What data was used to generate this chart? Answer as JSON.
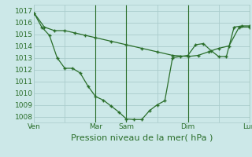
{
  "xlabel": "Pression niveau de la mer( hPa )",
  "background_color": "#cce8e8",
  "grid_color": "#aacccc",
  "line_color": "#2a6e2a",
  "ylim": [
    1007.5,
    1017.5
  ],
  "yticks": [
    1008,
    1009,
    1010,
    1011,
    1012,
    1013,
    1014,
    1015,
    1016,
    1017
  ],
  "xtick_labels": [
    "Ven",
    "",
    "Mar",
    "Sam",
    "",
    "Dim",
    "",
    "Lun"
  ],
  "xtick_positions": [
    0,
    2,
    4,
    6,
    8,
    10,
    12,
    14
  ],
  "vline_positions": [
    4,
    6,
    10,
    14
  ],
  "line1_x": [
    0,
    0.67,
    1.33,
    2.0,
    2.67,
    3.33,
    4.0,
    5.0,
    6.0,
    7.0,
    8.0,
    9.0,
    10.0,
    10.67,
    11.33,
    12.0,
    12.67,
    13.33,
    14.0
  ],
  "line1_y": [
    1016.8,
    1015.6,
    1015.3,
    1015.3,
    1015.1,
    1014.9,
    1014.7,
    1014.4,
    1014.1,
    1013.8,
    1013.5,
    1013.2,
    1013.1,
    1013.2,
    1013.5,
    1013.8,
    1014.0,
    1015.6,
    1015.6
  ],
  "line2_x": [
    0,
    0.5,
    1.0,
    1.5,
    2.0,
    2.5,
    3.0,
    3.5,
    4.0,
    4.5,
    5.0,
    5.5,
    6.0,
    6.5,
    7.0,
    7.5,
    8.0,
    8.5,
    9.0,
    9.5,
    10.0,
    10.5,
    11.0,
    11.5,
    12.0,
    12.5,
    13.0,
    13.5,
    14.0
  ],
  "line2_y": [
    1016.8,
    1015.6,
    1014.9,
    1013.0,
    1012.1,
    1012.1,
    1011.7,
    1010.6,
    1009.7,
    1009.4,
    1008.9,
    1008.4,
    1007.8,
    1007.75,
    1007.75,
    1008.5,
    1009.0,
    1009.35,
    1013.0,
    1013.1,
    1013.2,
    1014.1,
    1014.2,
    1013.6,
    1013.1,
    1013.1,
    1015.6,
    1015.7,
    1015.7
  ],
  "xlabel_fontsize": 8,
  "ytick_fontsize": 6.5,
  "xtick_fontsize": 6.5
}
